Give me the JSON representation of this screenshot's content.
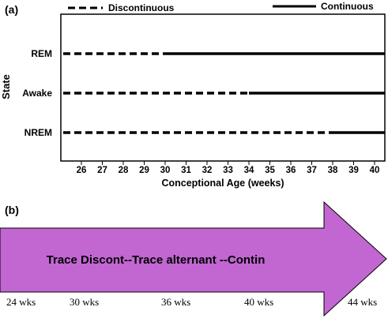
{
  "panel_a": {
    "label": "(a)",
    "legend": {
      "discontinuous": "Discontinuous",
      "continuous": "Continuous"
    },
    "y_axis_label": "State",
    "x_axis_label": "Conceptional Age (weeks)",
    "x_ticks": [
      "26",
      "27",
      "28",
      "29",
      "30",
      "31",
      "32",
      "33",
      "34",
      "35",
      "36",
      "37",
      "38",
      "39",
      "40"
    ],
    "rows": [
      {
        "label": "REM",
        "continuous_from_week": 30
      },
      {
        "label": "Awake",
        "continuous_from_week": 34
      },
      {
        "label": "NREM",
        "continuous_from_week": 38
      }
    ]
  },
  "panel_b": {
    "label": "(b)",
    "arrow_text": "Trace Discont--Trace alternant --Contin",
    "arrow_color": "#c266d2",
    "ages": [
      "24 wks",
      "30 wks",
      "36 wks",
      "40 wks",
      "44 wks"
    ]
  }
}
